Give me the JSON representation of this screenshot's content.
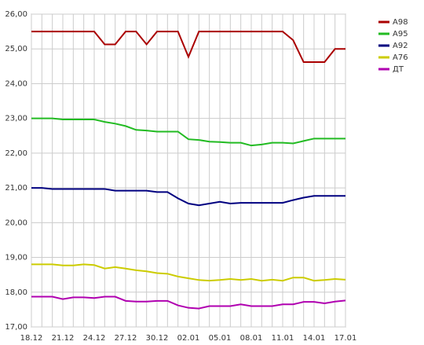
{
  "chart_data": {
    "type": "line",
    "categories": [
      "18.12",
      null,
      null,
      "21.12",
      null,
      null,
      "24.12",
      null,
      null,
      "27.12",
      null,
      null,
      "30.12",
      null,
      null,
      "02.01",
      null,
      null,
      "05.01",
      null,
      null,
      "08.01",
      null,
      null,
      "11.01",
      null,
      null,
      "14.01",
      null,
      null,
      "17.01"
    ],
    "series": [
      {
        "name": "A98",
        "color": "#aa0000",
        "values": [
          25.5,
          25.5,
          25.5,
          25.5,
          25.5,
          25.5,
          25.5,
          25.13,
          25.13,
          25.5,
          25.5,
          25.13,
          25.5,
          25.5,
          25.5,
          24.77,
          25.5,
          25.5,
          25.5,
          25.5,
          25.5,
          25.5,
          25.5,
          25.5,
          25.5,
          25.25,
          24.62,
          24.62,
          24.62,
          25.0,
          25.0
        ]
      },
      {
        "name": "A95",
        "color": "#22bb22",
        "values": [
          23.0,
          23.0,
          23.0,
          22.97,
          22.97,
          22.97,
          22.97,
          22.9,
          22.85,
          22.78,
          22.67,
          22.65,
          22.62,
          22.62,
          22.62,
          22.4,
          22.38,
          22.33,
          22.32,
          22.3,
          22.3,
          22.22,
          22.25,
          22.3,
          22.3,
          22.28,
          22.35,
          22.42,
          22.42,
          22.42,
          22.42
        ]
      },
      {
        "name": "A92",
        "color": "#000080",
        "values": [
          21.0,
          21.0,
          20.97,
          20.97,
          20.97,
          20.97,
          20.97,
          20.97,
          20.92,
          20.92,
          20.92,
          20.92,
          20.88,
          20.88,
          20.7,
          20.55,
          20.5,
          20.55,
          20.6,
          20.55,
          20.57,
          20.57,
          20.57,
          20.57,
          20.57,
          20.65,
          20.72,
          20.77,
          20.77,
          20.77,
          20.77
        ]
      },
      {
        "name": "A76",
        "color": "#cccc00",
        "values": [
          18.8,
          18.8,
          18.8,
          18.77,
          18.77,
          18.8,
          18.78,
          18.68,
          18.72,
          18.68,
          18.63,
          18.6,
          18.55,
          18.53,
          18.45,
          18.4,
          18.35,
          18.33,
          18.35,
          18.38,
          18.35,
          18.38,
          18.33,
          18.36,
          18.33,
          18.42,
          18.42,
          18.33,
          18.35,
          18.38,
          18.36
        ]
      },
      {
        "name": "ДТ",
        "color": "#b000b0",
        "values": [
          17.87,
          17.87,
          17.87,
          17.8,
          17.85,
          17.85,
          17.83,
          17.87,
          17.87,
          17.75,
          17.73,
          17.73,
          17.75,
          17.75,
          17.62,
          17.55,
          17.53,
          17.6,
          17.6,
          17.6,
          17.65,
          17.6,
          17.6,
          17.6,
          17.65,
          17.65,
          17.72,
          17.72,
          17.68,
          17.73,
          17.76
        ]
      }
    ],
    "ylim": [
      17,
      26
    ],
    "yticks": [
      {
        "value": 17,
        "label": "17,00"
      },
      {
        "value": 18,
        "label": "18,00"
      },
      {
        "value": 19,
        "label": "19,00"
      },
      {
        "value": 20,
        "label": "20,00"
      },
      {
        "value": 21,
        "label": "21,00"
      },
      {
        "value": 22,
        "label": "22,00"
      },
      {
        "value": 23,
        "label": "23,00"
      },
      {
        "value": 24,
        "label": "24,00"
      },
      {
        "value": 25,
        "label": "25,00"
      },
      {
        "value": 26,
        "label": "26,00"
      }
    ],
    "grid": true,
    "legend": "right"
  }
}
